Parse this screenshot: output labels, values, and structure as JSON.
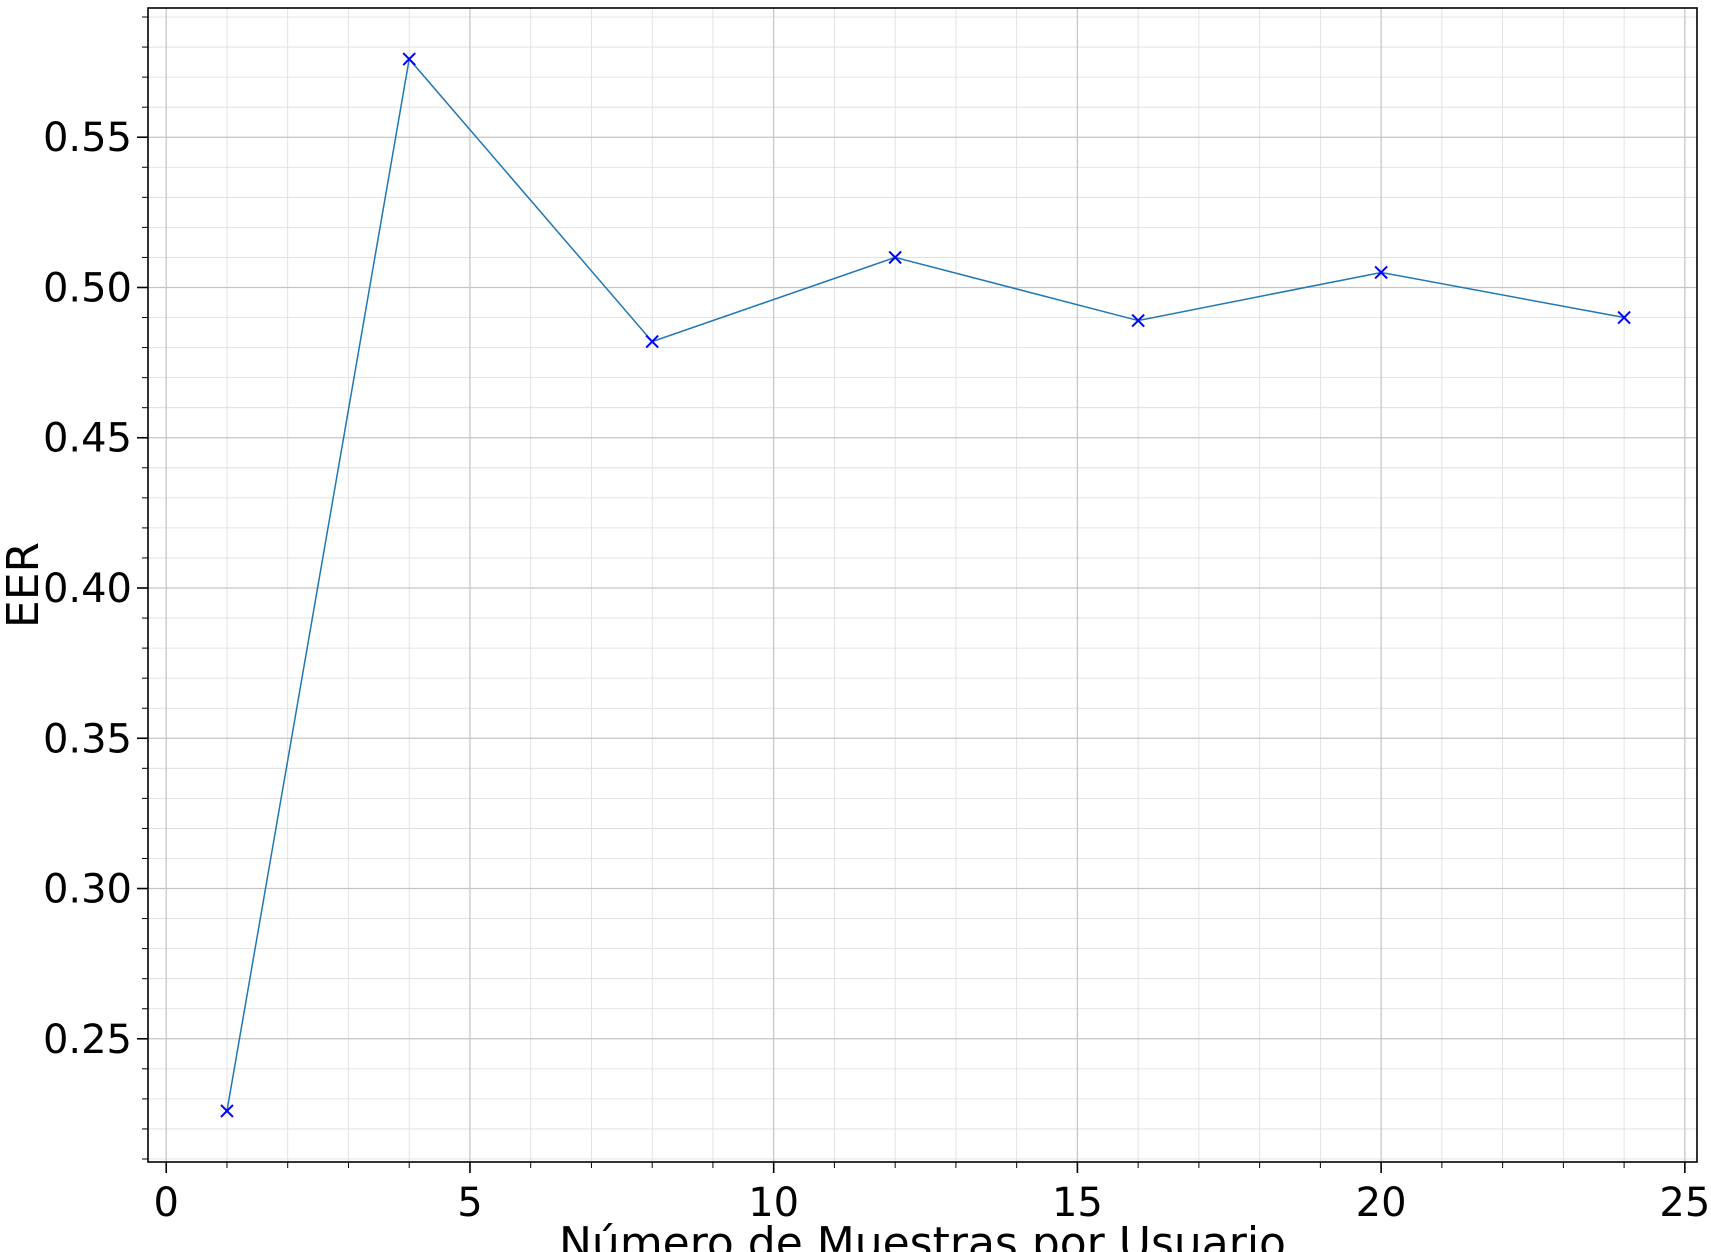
{
  "chart_data": {
    "type": "line",
    "title": "",
    "xlabel": "Número de Muestras por Usuario",
    "ylabel": "EER",
    "xlim": [
      -0.3,
      25.2
    ],
    "ylim": [
      0.209,
      0.593
    ],
    "xticks": [
      0,
      5,
      10,
      15,
      20,
      25
    ],
    "xtick_labels": [
      "0",
      "5",
      "10",
      "15",
      "20",
      "25"
    ],
    "yticks": [
      0.25,
      0.3,
      0.35,
      0.4,
      0.45,
      0.5,
      0.55
    ],
    "ytick_labels": [
      "0.25",
      "0.30",
      "0.35",
      "0.40",
      "0.45",
      "0.50",
      "0.55"
    ],
    "grid": true,
    "minor_grid": true,
    "series": [
      {
        "x": [
          1,
          4,
          8,
          12,
          16,
          20,
          24
        ],
        "values": [
          0.226,
          0.576,
          0.482,
          0.51,
          0.489,
          0.505,
          0.49
        ],
        "line_color": "#1f77b4",
        "marker": "x",
        "marker_color": "#0000ff"
      }
    ]
  }
}
